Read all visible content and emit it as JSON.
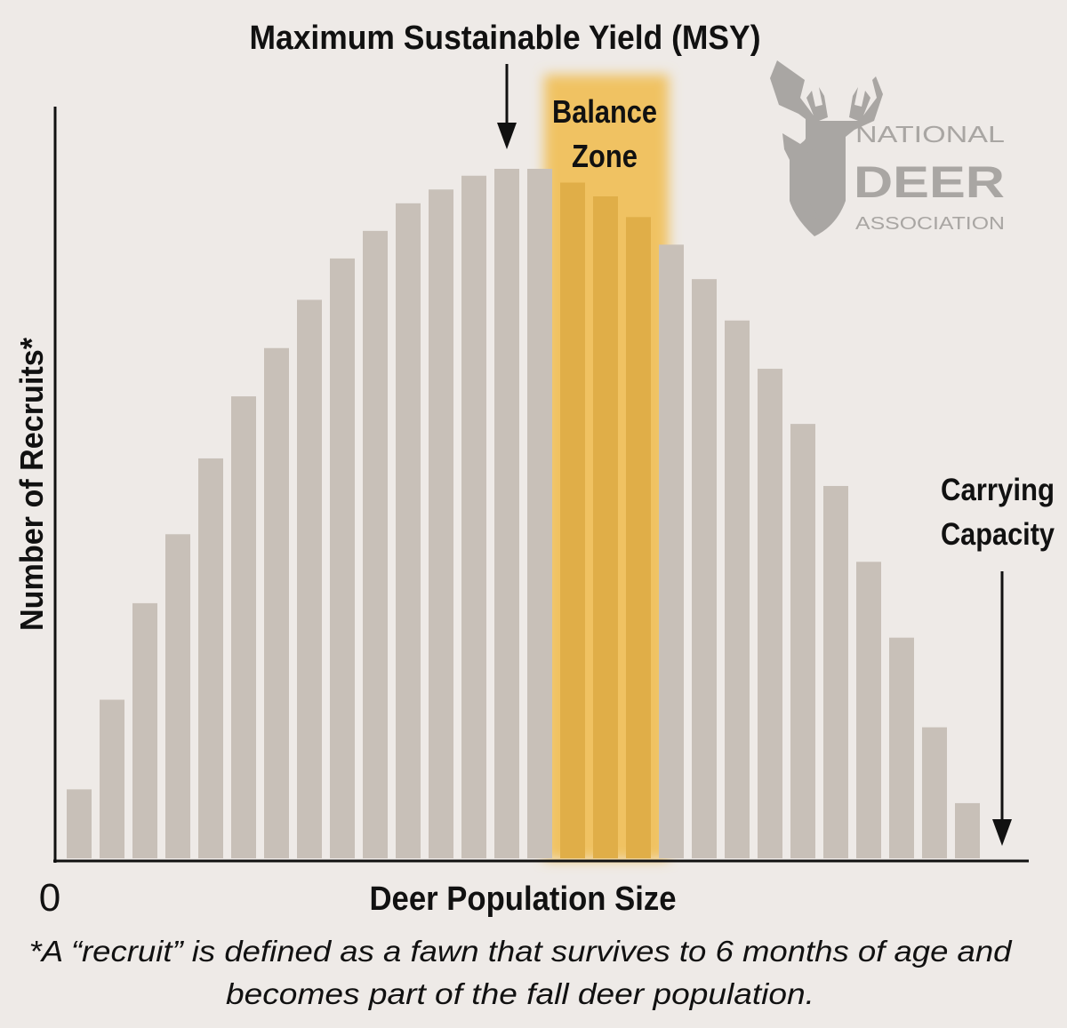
{
  "chart_data": {
    "type": "bar",
    "title": "Maximum Sustainable Yield (MSY)",
    "xlabel": "Deer Population Size",
    "ylabel": "Number of Recruits*",
    "x_origin_label": "0",
    "values": [
      10,
      23,
      37,
      47,
      58,
      67,
      74,
      81,
      87,
      91,
      95,
      97,
      99,
      100,
      100,
      98,
      96,
      93,
      89,
      84,
      78,
      71,
      63,
      54,
      43,
      32,
      19,
      8
    ],
    "highlight_indices": [
      15,
      16,
      17
    ],
    "ylim": [
      0,
      100
    ],
    "grid": false,
    "annotations": {
      "msy": "Maximum Sustainable Yield (MSY)",
      "balance_zone": [
        "Balance",
        "Zone"
      ],
      "carrying_capacity": [
        "Carrying",
        "Capacity"
      ]
    },
    "footnote": [
      "*A “recruit” is defined as a fawn that survives to 6 months of age and",
      "becomes part of the fall deer population."
    ],
    "colors": {
      "bar": "#c8c0b8",
      "highlight_bar": "#e0ae48",
      "zone": "#f0c262",
      "background": "#eeeae7",
      "axis": "#111111"
    }
  },
  "logo": {
    "line1": "NATIONAL",
    "line2": "DEER",
    "line3": "ASSOCIATION"
  }
}
